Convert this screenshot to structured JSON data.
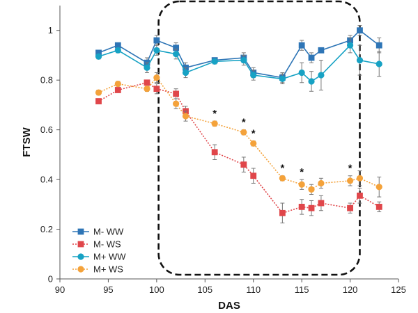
{
  "chart_data": {
    "type": "line",
    "xlabel": "DAS",
    "ylabel": "FTSW",
    "xlim": [
      90,
      125
    ],
    "ylim": [
      0,
      1.1
    ],
    "x_ticks": [
      90,
      95,
      100,
      105,
      110,
      115,
      120,
      125
    ],
    "y_ticks": [
      0,
      0.2,
      0.4,
      0.6,
      0.8,
      1
    ],
    "x_tick_labels": [
      "90",
      "95",
      "100",
      "105",
      "110",
      "115",
      "120",
      "125"
    ],
    "y_tick_labels": [
      "0",
      "0.2",
      "0.4",
      "0.6",
      "0.8",
      "1"
    ],
    "grid": false,
    "legend_position": "bottom-left",
    "highlight_region": {
      "x_range": [
        100.2,
        121
      ],
      "style": "dashed rounded rectangle"
    },
    "significance_marker": "*",
    "significance_x": [
      106,
      109,
      110,
      113,
      115,
      120
    ],
    "series": [
      {
        "name": "M- WW",
        "color": "#2e75b6",
        "marker": "square",
        "line_style": "solid",
        "x": [
          94,
          96,
          99,
          100,
          102,
          103,
          106,
          109,
          110,
          113,
          115,
          116,
          117,
          120,
          121,
          123
        ],
        "y": [
          0.91,
          0.94,
          0.87,
          0.96,
          0.93,
          0.85,
          0.88,
          0.89,
          0.83,
          0.81,
          0.94,
          0.89,
          0.92,
          0.96,
          1.0,
          0.94
        ],
        "err": [
          0.01,
          0.01,
          0.02,
          0.02,
          0.02,
          0.02,
          0.01,
          0.02,
          0.02,
          0.02,
          0.02,
          0.02,
          0.01,
          0.02,
          0.02,
          0.03
        ]
      },
      {
        "name": "M- WS",
        "color": "#e0464a",
        "marker": "square",
        "line_style": "dotted",
        "x": [
          94,
          96,
          99,
          100,
          102,
          103,
          106,
          109,
          110,
          113,
          115,
          116,
          117,
          120,
          121,
          123
        ],
        "y": [
          0.715,
          0.76,
          0.79,
          0.765,
          0.745,
          0.675,
          0.51,
          0.46,
          0.415,
          0.265,
          0.29,
          0.285,
          0.305,
          0.285,
          0.335,
          0.29
        ],
        "err": [
          0.01,
          0.01,
          0.01,
          0.02,
          0.02,
          0.02,
          0.03,
          0.03,
          0.03,
          0.04,
          0.03,
          0.03,
          0.03,
          0.02,
          0.03,
          0.02
        ]
      },
      {
        "name": "M+ WW",
        "color": "#17a2c4",
        "marker": "circle",
        "line_style": "solid",
        "x": [
          94,
          96,
          99,
          100,
          102,
          103,
          106,
          109,
          110,
          113,
          115,
          116,
          117,
          120,
          121,
          123
        ],
        "y": [
          0.895,
          0.92,
          0.85,
          0.92,
          0.905,
          0.83,
          0.875,
          0.88,
          0.82,
          0.805,
          0.83,
          0.795,
          0.82,
          0.94,
          0.88,
          0.865
        ],
        "err": [
          0.01,
          0.01,
          0.02,
          0.02,
          0.02,
          0.02,
          0.01,
          0.02,
          0.02,
          0.02,
          0.04,
          0.04,
          0.06,
          0.03,
          0.06,
          0.05
        ]
      },
      {
        "name": "M+ WS",
        "color": "#f4a23a",
        "marker": "circle",
        "line_style": "dotted",
        "x": [
          94,
          96,
          99,
          100,
          102,
          103,
          106,
          109,
          110,
          113,
          115,
          116,
          117,
          120,
          121,
          123
        ],
        "y": [
          0.75,
          0.785,
          0.765,
          0.81,
          0.705,
          0.655,
          0.625,
          0.59,
          0.545,
          0.405,
          0.38,
          0.36,
          0.385,
          0.395,
          0.405,
          0.37
        ],
        "err": [
          0.01,
          0.01,
          0.01,
          0.02,
          0.02,
          0.02,
          0.01,
          0.01,
          0.01,
          0.01,
          0.02,
          0.02,
          0.02,
          0.02,
          0.03,
          0.04
        ]
      }
    ]
  }
}
